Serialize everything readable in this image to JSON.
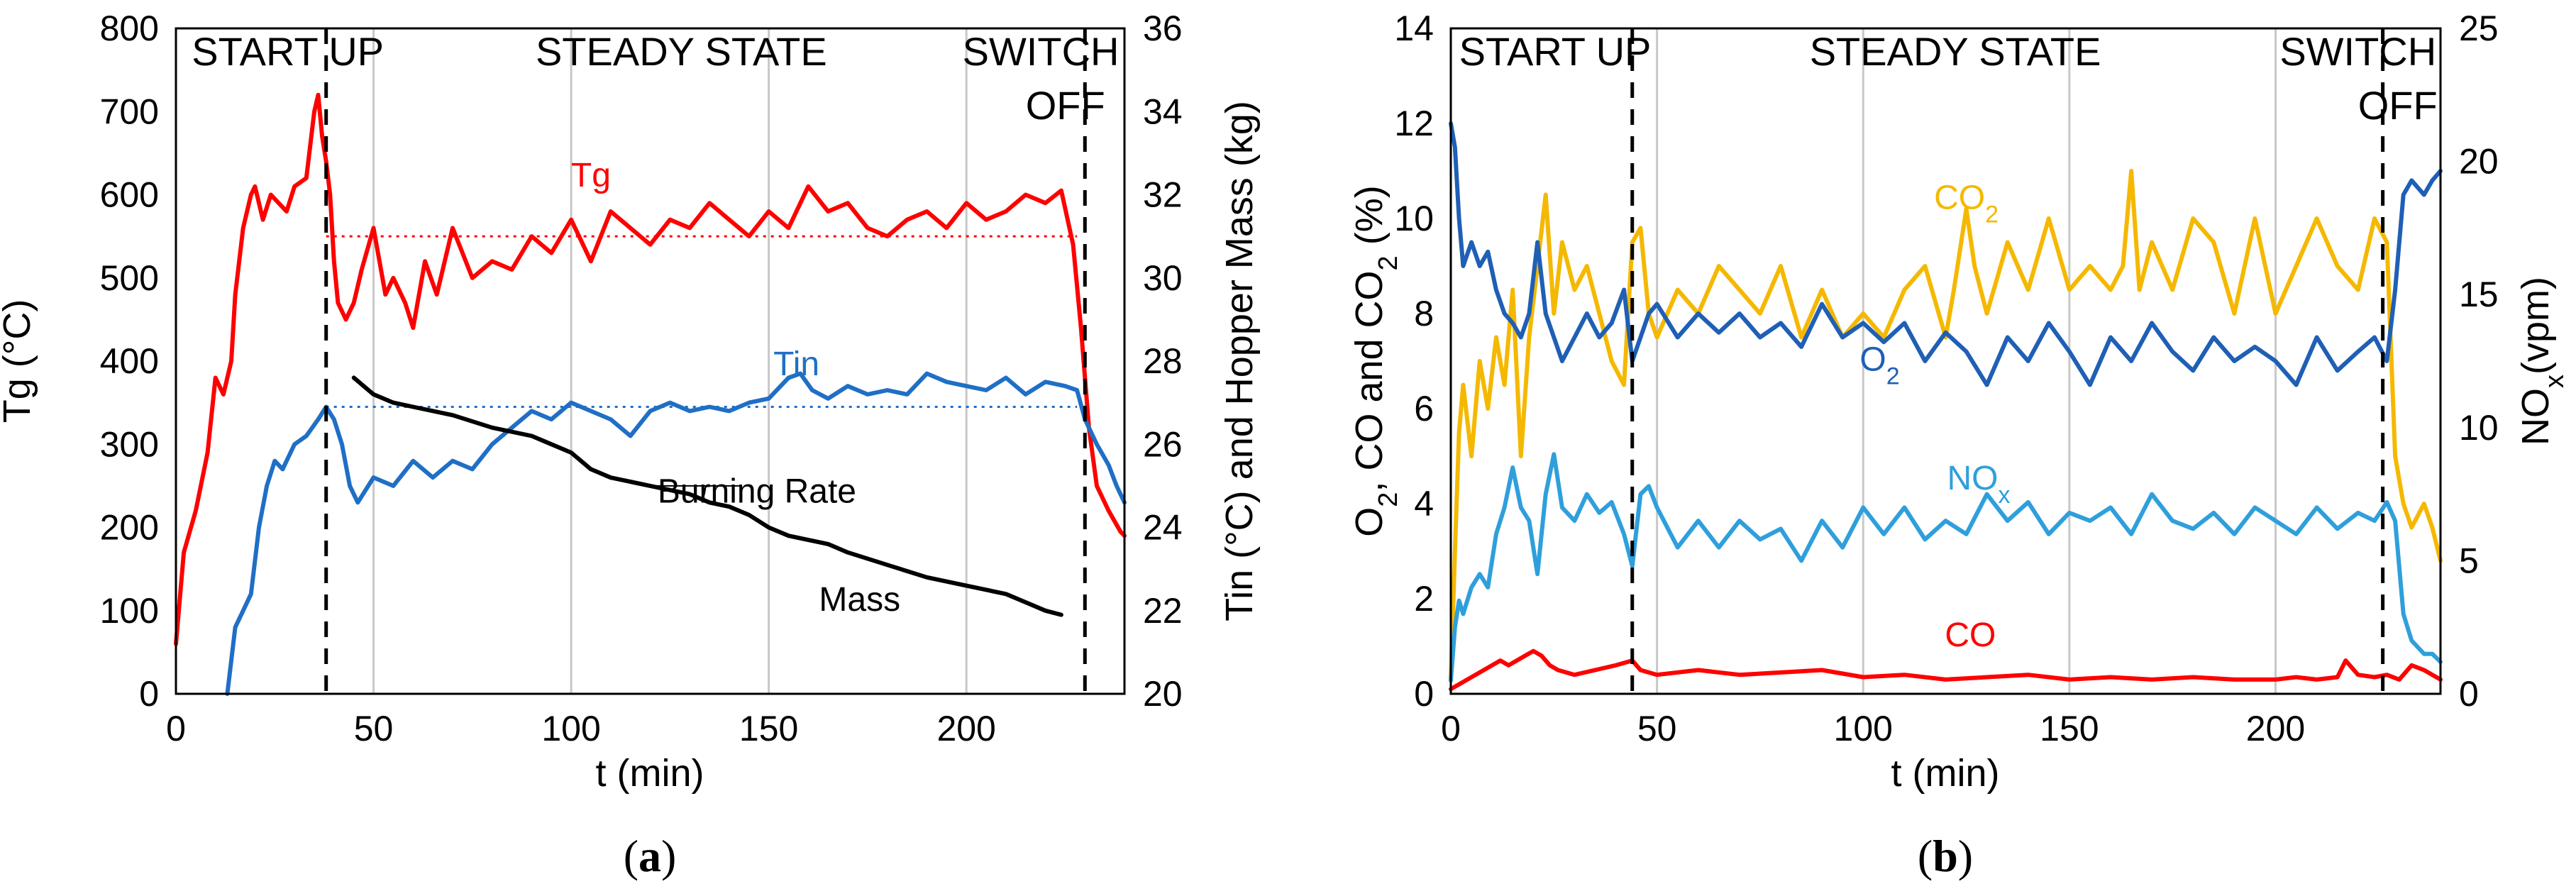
{
  "chart_data": [
    {
      "type": "line",
      "panel_label": {
        "open": "(",
        "letter": "a",
        "close": ")"
      },
      "xlabel": "t (min)",
      "ylabel": "Tg (°C)",
      "y2label": "Tin (°C) and Hopper Mass (kg)",
      "xlim": [
        0,
        240
      ],
      "ylim": [
        0,
        800
      ],
      "y2lim": [
        20,
        36
      ],
      "x_ticks": [
        0,
        50,
        100,
        150,
        200
      ],
      "y_ticks": [
        0,
        100,
        200,
        300,
        400,
        500,
        600,
        700,
        800
      ],
      "y2_ticks": [
        20,
        22,
        24,
        26,
        28,
        30,
        32,
        34,
        36
      ],
      "vertical_gridlines": [
        50,
        100,
        150,
        200
      ],
      "phase_dividers": [
        38,
        230
      ],
      "phase_labels": [
        {
          "text": "START UP",
          "x": 4
        },
        {
          "text": "STEADY STATE",
          "x": 91
        },
        {
          "text": "SWITCH",
          "x": 199
        },
        {
          "text": "OFF",
          "x": 215
        }
      ],
      "reference_lines": [
        {
          "series": "Tg",
          "axis": "y",
          "value": 550,
          "x": [
            38,
            228
          ],
          "color": "#ff0000"
        },
        {
          "series": "Tin",
          "axis": "y",
          "value": 345,
          "x": [
            38,
            228
          ],
          "color": "#1f6fc5"
        }
      ],
      "annotations": [
        {
          "text": "Tg",
          "x": 105,
          "y": 610,
          "color": "#ff0000"
        },
        {
          "text": "Tin",
          "x": 157,
          "y": 383,
          "color": "#1f6fc5"
        },
        {
          "text": "Burning Rate",
          "x": 147,
          "y": 230,
          "color": "#000000"
        },
        {
          "text": "Mass",
          "x": 173,
          "y": 100,
          "color": "#000000"
        }
      ],
      "series": [
        {
          "name": "Tg",
          "axis": "y",
          "color": "#ff0000",
          "x": [
            0,
            2,
            5,
            8,
            10,
            12,
            14,
            15,
            17,
            19,
            20,
            22,
            24,
            26,
            28,
            30,
            33,
            35,
            36,
            37,
            38,
            39,
            40,
            41,
            43,
            45,
            47,
            50,
            53,
            55,
            58,
            60,
            63,
            66,
            70,
            75,
            80,
            85,
            90,
            95,
            100,
            105,
            110,
            115,
            120,
            125,
            130,
            135,
            140,
            145,
            150,
            155,
            160,
            165,
            170,
            175,
            180,
            185,
            190,
            195,
            200,
            205,
            210,
            215,
            220,
            224,
            227,
            229,
            231,
            233,
            236,
            239,
            240
          ],
          "values": [
            60,
            170,
            220,
            290,
            380,
            360,
            400,
            480,
            560,
            600,
            610,
            570,
            600,
            590,
            580,
            610,
            620,
            700,
            720,
            670,
            640,
            600,
            520,
            470,
            450,
            470,
            510,
            560,
            480,
            500,
            470,
            440,
            520,
            480,
            560,
            500,
            520,
            510,
            550,
            530,
            570,
            520,
            580,
            560,
            540,
            570,
            560,
            590,
            570,
            550,
            580,
            560,
            610,
            580,
            590,
            560,
            550,
            570,
            580,
            560,
            590,
            570,
            580,
            600,
            590,
            605,
            540,
            440,
            320,
            250,
            220,
            195,
            190
          ]
        },
        {
          "name": "Tin",
          "axis": "y",
          "color": "#1f6fc5",
          "x": [
            13,
            14,
            15,
            17,
            19,
            21,
            23,
            25,
            27,
            30,
            33,
            36,
            38,
            40,
            42,
            44,
            46,
            50,
            55,
            60,
            65,
            70,
            75,
            80,
            85,
            90,
            95,
            100,
            105,
            110,
            115,
            120,
            125,
            130,
            135,
            140,
            145,
            150,
            155,
            158,
            161,
            165,
            170,
            175,
            180,
            185,
            190,
            195,
            200,
            205,
            210,
            215,
            220,
            225,
            228,
            230,
            233,
            236,
            238,
            240
          ],
          "values": [
            0,
            40,
            80,
            100,
            120,
            200,
            250,
            280,
            270,
            300,
            310,
            330,
            345,
            330,
            300,
            250,
            230,
            260,
            250,
            280,
            260,
            280,
            270,
            300,
            320,
            340,
            330,
            350,
            340,
            330,
            310,
            340,
            350,
            340,
            345,
            340,
            350,
            355,
            380,
            385,
            365,
            355,
            370,
            360,
            365,
            360,
            385,
            375,
            370,
            365,
            380,
            360,
            375,
            370,
            365,
            330,
            300,
            275,
            250,
            230
          ]
        },
        {
          "name": "Mass",
          "axis": "y2",
          "color": "#000000",
          "x": [
            45,
            50,
            55,
            60,
            70,
            80,
            90,
            100,
            105,
            110,
            120,
            130,
            135,
            140,
            145,
            150,
            155,
            160,
            165,
            170,
            180,
            190,
            200,
            210,
            215,
            220,
            224
          ],
          "values": [
            27.6,
            27.2,
            27.0,
            26.9,
            26.7,
            26.4,
            26.2,
            25.8,
            25.4,
            25.2,
            25.0,
            24.8,
            24.6,
            24.5,
            24.3,
            24.0,
            23.8,
            23.7,
            23.6,
            23.4,
            23.1,
            22.8,
            22.6,
            22.4,
            22.2,
            22.0,
            21.9
          ]
        }
      ]
    },
    {
      "type": "line",
      "panel_label": {
        "open": "(",
        "letter": "b",
        "close": ")"
      },
      "xlabel": "t (min)",
      "ylabel_parts": [
        "O",
        "2",
        ", CO and CO",
        "2",
        " (%)"
      ],
      "y2label_parts": [
        "NO",
        "x",
        "(vpm)"
      ],
      "xlim": [
        0,
        240
      ],
      "ylim": [
        0,
        14
      ],
      "y2lim": [
        0,
        25
      ],
      "x_ticks": [
        0,
        50,
        100,
        150,
        200
      ],
      "y_ticks": [
        0,
        2,
        4,
        6,
        8,
        10,
        12,
        14
      ],
      "y2_ticks": [
        0,
        5,
        10,
        15,
        20,
        25
      ],
      "vertical_gridlines": [
        50,
        100,
        150,
        200
      ],
      "phase_dividers": [
        44,
        226
      ],
      "phase_labels": [
        {
          "text": "START UP",
          "x": 2
        },
        {
          "text": "STEADY STATE",
          "x": 87
        },
        {
          "text": "SWITCH",
          "x": 201
        },
        {
          "text": "OFF",
          "x": 220
        }
      ],
      "annotations": [
        {
          "text_parts": [
            "CO",
            "2"
          ],
          "x": 125,
          "y": 10.2,
          "color": "#f5b800"
        },
        {
          "text_parts": [
            "O",
            "2"
          ],
          "x": 104,
          "y": 6.8,
          "color": "#1f5fb5"
        },
        {
          "text_parts": [
            "NO",
            "x"
          ],
          "x": 128,
          "y": 4.3,
          "color": "#2f9fdc"
        },
        {
          "text_parts": [
            "CO"
          ],
          "x": 126,
          "y": 1.0,
          "color": "#ff0000"
        }
      ],
      "series": [
        {
          "name": "CO2",
          "axis": "y",
          "color": "#f5b800",
          "x": [
            0,
            1,
            2,
            3,
            5,
            7,
            9,
            11,
            13,
            15,
            17,
            19,
            21,
            23,
            25,
            27,
            30,
            33,
            36,
            39,
            42,
            44,
            46,
            48,
            50,
            55,
            60,
            65,
            70,
            75,
            80,
            85,
            90,
            95,
            100,
            105,
            110,
            115,
            120,
            122,
            125,
            127,
            130,
            135,
            140,
            145,
            150,
            155,
            160,
            163,
            165,
            167,
            170,
            175,
            180,
            185,
            190,
            195,
            200,
            205,
            210,
            215,
            220,
            224,
            227,
            229,
            231,
            233,
            236,
            238,
            240
          ],
          "values": [
            0.3,
            3.0,
            5.5,
            6.5,
            5.0,
            7.0,
            6.0,
            7.5,
            6.5,
            8.5,
            5.0,
            7.5,
            9.0,
            10.5,
            8.0,
            9.5,
            8.5,
            9.0,
            8.0,
            7.0,
            6.5,
            9.5,
            9.8,
            8.0,
            7.5,
            8.5,
            8.0,
            9.0,
            8.5,
            8.0,
            9.0,
            7.5,
            8.5,
            7.5,
            8.0,
            7.5,
            8.5,
            9.0,
            7.5,
            8.5,
            10.2,
            9.0,
            8.0,
            9.5,
            8.5,
            10.0,
            8.5,
            9.0,
            8.5,
            9.0,
            11.0,
            8.5,
            9.5,
            8.5,
            10.0,
            9.5,
            8.0,
            10.0,
            8.0,
            9.0,
            10.0,
            9.0,
            8.5,
            10.0,
            9.5,
            5.0,
            4.0,
            3.5,
            4.0,
            3.5,
            2.8
          ]
        },
        {
          "name": "O2",
          "axis": "y",
          "color": "#1f5fb5",
          "x": [
            0,
            1,
            2,
            3,
            5,
            7,
            9,
            11,
            13,
            15,
            17,
            19,
            21,
            23,
            25,
            27,
            30,
            33,
            36,
            39,
            42,
            44,
            46,
            48,
            50,
            55,
            60,
            65,
            70,
            75,
            80,
            85,
            90,
            95,
            100,
            105,
            110,
            115,
            120,
            125,
            130,
            135,
            140,
            145,
            150,
            155,
            160,
            165,
            170,
            175,
            180,
            185,
            190,
            195,
            200,
            205,
            210,
            215,
            220,
            224,
            227,
            229,
            231,
            233,
            236,
            238,
            240
          ],
          "values": [
            12.0,
            11.5,
            10.0,
            9.0,
            9.5,
            9.0,
            9.3,
            8.5,
            8.0,
            7.8,
            7.5,
            8.0,
            9.5,
            8.0,
            7.5,
            7.0,
            7.5,
            8.0,
            7.5,
            7.8,
            8.5,
            7.0,
            7.5,
            8.0,
            8.2,
            7.5,
            8.0,
            7.6,
            8.0,
            7.5,
            7.8,
            7.3,
            8.2,
            7.5,
            7.8,
            7.4,
            7.8,
            7.0,
            7.6,
            7.2,
            6.5,
            7.5,
            7.0,
            7.8,
            7.2,
            6.5,
            7.5,
            7.0,
            7.8,
            7.2,
            6.8,
            7.5,
            7.0,
            7.3,
            7.0,
            6.5,
            7.5,
            6.8,
            7.2,
            7.5,
            7.0,
            8.5,
            10.5,
            10.8,
            10.5,
            10.8,
            11.0
          ]
        },
        {
          "name": "NOx",
          "axis": "y2",
          "color": "#2f9fdc",
          "x": [
            0,
            1,
            2,
            3,
            5,
            7,
            9,
            11,
            13,
            15,
            17,
            19,
            21,
            23,
            25,
            27,
            30,
            33,
            36,
            39,
            42,
            44,
            46,
            48,
            50,
            55,
            60,
            65,
            70,
            75,
            80,
            85,
            90,
            95,
            100,
            105,
            110,
            115,
            120,
            125,
            130,
            135,
            140,
            145,
            150,
            155,
            160,
            165,
            170,
            175,
            180,
            185,
            190,
            195,
            200,
            205,
            210,
            215,
            220,
            224,
            227,
            229,
            231,
            233,
            236,
            238,
            240
          ],
          "values": [
            0.5,
            2.5,
            3.5,
            3.0,
            4.0,
            4.5,
            4.0,
            6.0,
            7.0,
            8.5,
            7.0,
            6.5,
            4.5,
            7.5,
            9.0,
            7.0,
            6.5,
            7.5,
            6.8,
            7.2,
            6.0,
            4.8,
            7.5,
            7.8,
            7.0,
            5.5,
            6.5,
            5.5,
            6.5,
            5.8,
            6.2,
            5.0,
            6.5,
            5.5,
            7.0,
            6.0,
            7.0,
            5.8,
            6.5,
            6.0,
            7.5,
            6.5,
            7.2,
            6.0,
            6.8,
            6.5,
            7.0,
            6.0,
            7.5,
            6.5,
            6.2,
            6.8,
            6.0,
            7.0,
            6.5,
            6.0,
            7.0,
            6.2,
            6.8,
            6.5,
            7.2,
            6.5,
            3.0,
            2.0,
            1.5,
            1.5,
            1.2
          ]
        },
        {
          "name": "CO",
          "axis": "y",
          "color": "#ff0000",
          "x": [
            0,
            2,
            4,
            6,
            8,
            10,
            12,
            14,
            16,
            18,
            20,
            22,
            24,
            26,
            30,
            35,
            40,
            44,
            46,
            50,
            60,
            70,
            80,
            90,
            100,
            110,
            120,
            130,
            140,
            150,
            160,
            170,
            180,
            190,
            200,
            205,
            210,
            215,
            217,
            220,
            224,
            227,
            230,
            233,
            236,
            240
          ],
          "values": [
            0.1,
            0.2,
            0.3,
            0.4,
            0.5,
            0.6,
            0.7,
            0.6,
            0.7,
            0.8,
            0.9,
            0.8,
            0.6,
            0.5,
            0.4,
            0.5,
            0.6,
            0.7,
            0.5,
            0.4,
            0.5,
            0.4,
            0.45,
            0.5,
            0.35,
            0.4,
            0.3,
            0.35,
            0.4,
            0.3,
            0.35,
            0.3,
            0.35,
            0.3,
            0.3,
            0.35,
            0.3,
            0.35,
            0.7,
            0.4,
            0.35,
            0.4,
            0.3,
            0.6,
            0.5,
            0.3
          ]
        }
      ]
    }
  ]
}
